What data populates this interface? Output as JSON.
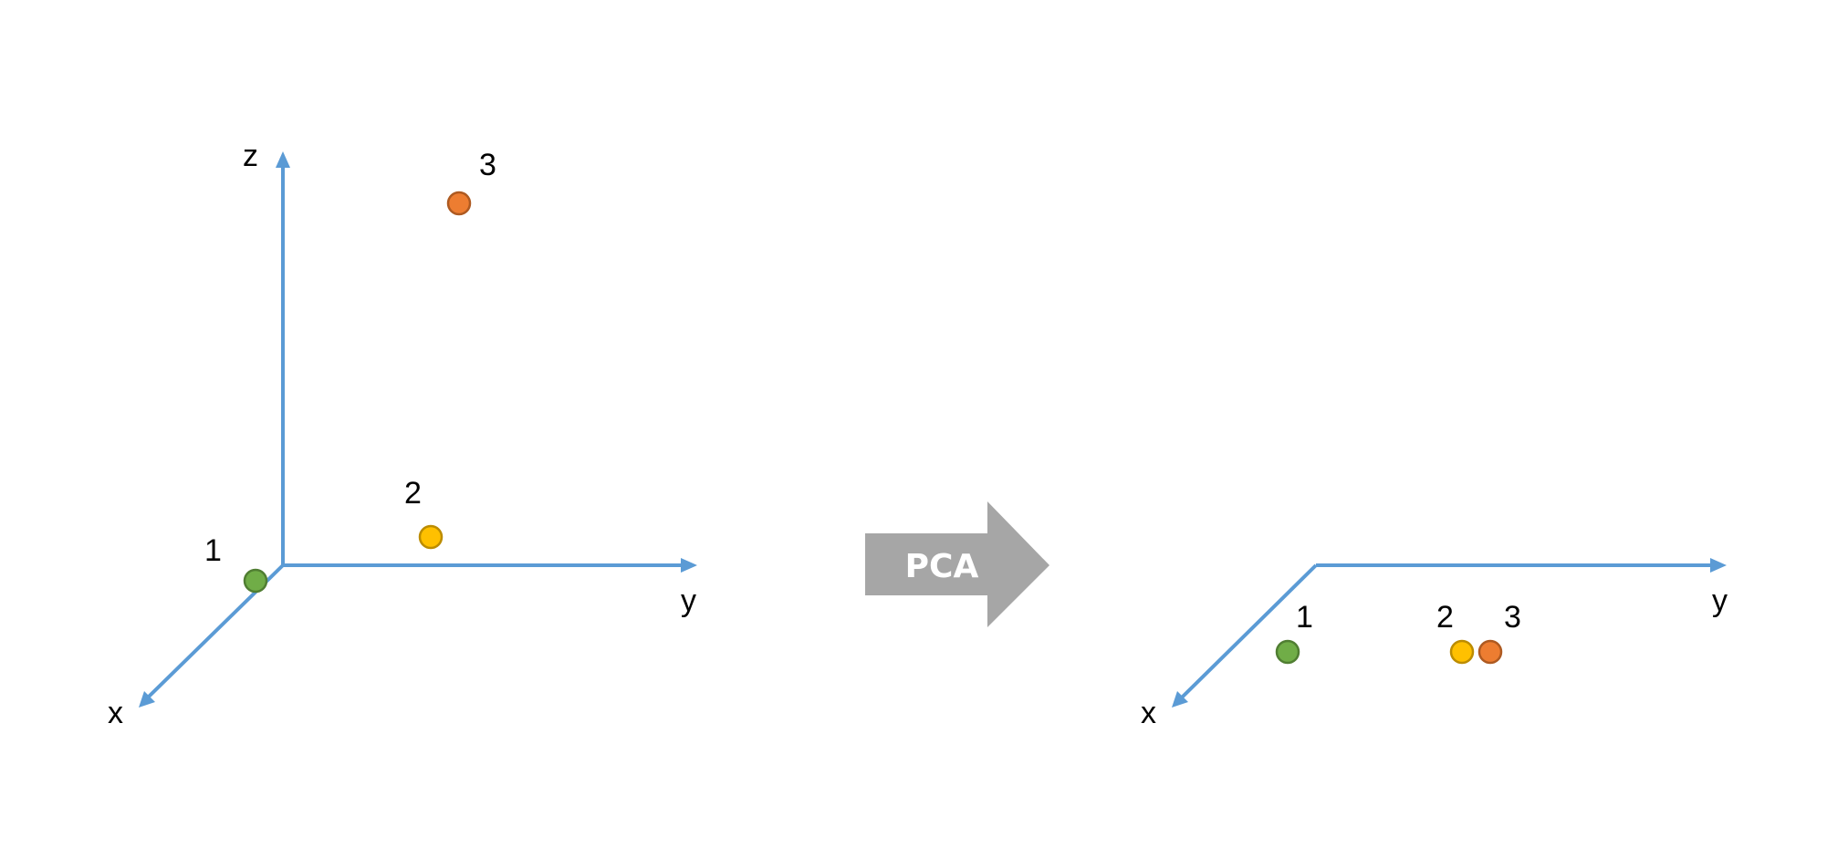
{
  "colors": {
    "axis": "#5b9bd5",
    "arrow": "#a6a6a6",
    "arrow_text": "#ffffff",
    "point_1_fill": "#70ad47",
    "point_1_stroke": "#507e32",
    "point_2_fill": "#ffc000",
    "point_2_stroke": "#bc8c00",
    "point_3_fill": "#ed7d31",
    "point_3_stroke": "#ae5a21"
  },
  "before": {
    "axes": {
      "x": "x",
      "y": "y",
      "z": "z"
    },
    "points": [
      {
        "label": "1",
        "color": "green"
      },
      {
        "label": "2",
        "color": "yellow"
      },
      {
        "label": "3",
        "color": "orange"
      }
    ]
  },
  "transform": {
    "label": "PCA",
    "icon": "right-arrow-icon"
  },
  "after": {
    "axes": {
      "x": "x",
      "y": "y"
    },
    "points": [
      {
        "label": "1",
        "color": "green"
      },
      {
        "label": "2",
        "color": "yellow"
      },
      {
        "label": "3",
        "color": "orange"
      }
    ]
  }
}
